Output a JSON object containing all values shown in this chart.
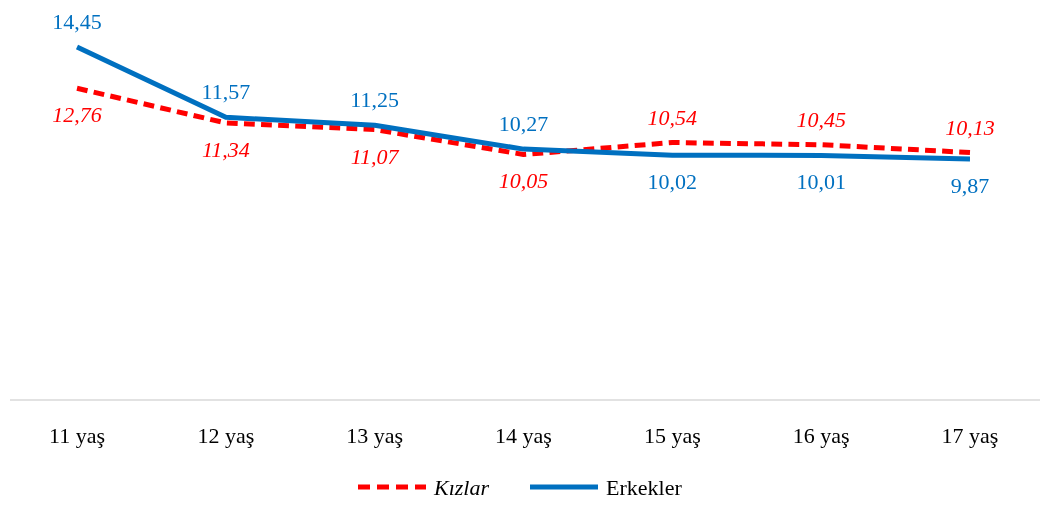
{
  "chart_data": {
    "type": "line",
    "categories": [
      "11 yaş",
      "12 yaş",
      "13 yaş",
      "14 yaş",
      "15 yaş",
      "16 yaş",
      "17 yaş"
    ],
    "tick_labels": "x",
    "legend": "bottom",
    "marker": "none",
    "series": [
      {
        "name": "Kızlar",
        "color": "#ff0000",
        "line_style": "dashed",
        "values": [
          12.76,
          11.34,
          11.07,
          10.05,
          10.54,
          10.45,
          10.13
        ],
        "value_labels": [
          "12,76",
          "11,34",
          "11,07",
          "10,05",
          "10,54",
          "10,45",
          "10,13"
        ]
      },
      {
        "name": "Erkekler",
        "color": "#0070c0",
        "line_style": "solid",
        "values": [
          14.45,
          11.57,
          11.25,
          10.27,
          10.02,
          10.01,
          9.87
        ],
        "value_labels": [
          "14,45",
          "11,57",
          "11,25",
          "10,27",
          "10,02",
          "10,01",
          "9,87"
        ]
      }
    ]
  }
}
